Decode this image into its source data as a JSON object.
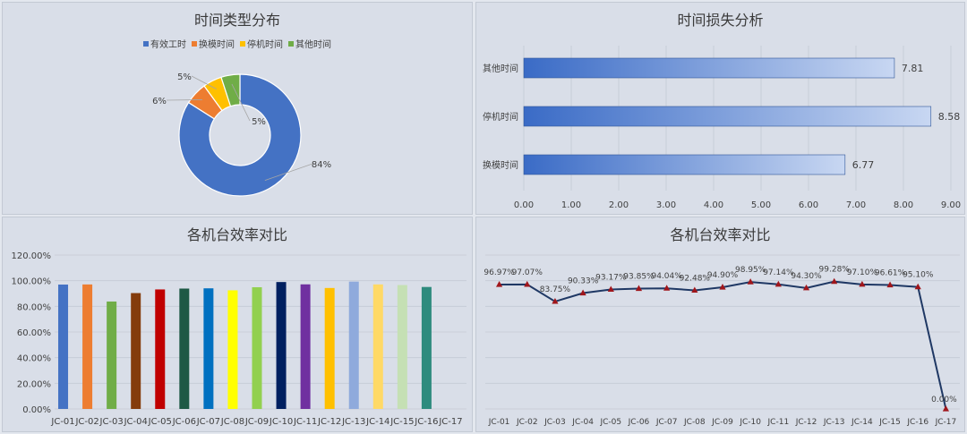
{
  "colors": {
    "panel_bg": "#d9dee8",
    "text": "#404040",
    "grid": "#c4cad5",
    "line": "#1f3864",
    "marker": "#a0161b"
  },
  "chart_data": [
    {
      "type": "pie",
      "subtype": "donut",
      "title": "时间类型分布",
      "legend_position": "top",
      "categories": [
        "有效工时",
        "换模时间",
        "停机时间",
        "其他时间"
      ],
      "values": [
        84,
        6,
        5,
        5
      ],
      "labels": [
        "84%",
        "6%",
        "5%",
        "5%"
      ],
      "colors": [
        "#4472c4",
        "#ed7d31",
        "#ffc000",
        "#70ad47"
      ]
    },
    {
      "type": "bar",
      "orientation": "horizontal",
      "title": "时间损失分析",
      "categories": [
        "其他时间",
        "停机时间",
        "换模时间"
      ],
      "values": [
        7.81,
        8.58,
        6.77
      ],
      "value_labels": [
        "7.81",
        "8.58",
        "6.77"
      ],
      "xlim": [
        0,
        9
      ],
      "xticks": [
        "0.00",
        "1.00",
        "2.00",
        "3.00",
        "4.00",
        "5.00",
        "6.00",
        "7.00",
        "8.00",
        "9.00"
      ],
      "grid": true,
      "bar_color": "#4472c4"
    },
    {
      "type": "bar",
      "title": "各机台效率对比",
      "categories": [
        "JC-01",
        "JC-02",
        "JC-03",
        "JC-04",
        "JC-05",
        "JC-06",
        "JC-07",
        "JC-08",
        "JC-09",
        "JC-10",
        "JC-11",
        "JC-12",
        "JC-13",
        "JC-14",
        "JC-15",
        "JC-16",
        "JC-17"
      ],
      "values": [
        96.97,
        97.07,
        83.75,
        90.33,
        93.17,
        93.85,
        94.04,
        92.48,
        94.9,
        98.95,
        97.14,
        94.3,
        99.28,
        97.1,
        96.61,
        95.1,
        0
      ],
      "ylim": [
        0,
        120
      ],
      "yticks": [
        "0.00%",
        "20.00%",
        "40.00%",
        "60.00%",
        "80.00%",
        "100.00%",
        "120.00%"
      ],
      "grid": true,
      "colors": [
        "#4472c4",
        "#ed7d31",
        "#70ad47",
        "#843c0c",
        "#c00000",
        "#1e5945",
        "#0070c0",
        "#ffff00",
        "#92d050",
        "#002060",
        "#7030a0",
        "#ffc000",
        "#8faadc",
        "#ffd966",
        "#c5e0b4",
        "#2e8b7e",
        "#bfbfbf"
      ]
    },
    {
      "type": "line",
      "title": "各机台效率对比",
      "categories": [
        "JC-01",
        "JC-02",
        "JC-03",
        "JC-04",
        "JC-05",
        "JC-06",
        "JC-07",
        "JC-08",
        "JC-09",
        "JC-10",
        "JC-11",
        "JC-12",
        "JC-13",
        "JC-14",
        "JC-15",
        "JC-16",
        "JC-17"
      ],
      "values": [
        96.97,
        97.07,
        83.75,
        90.33,
        93.17,
        93.85,
        94.04,
        92.48,
        94.9,
        98.95,
        97.14,
        94.3,
        99.28,
        97.1,
        96.61,
        95.1,
        0
      ],
      "value_labels": [
        "96.97%",
        "97.07%",
        "83.75%",
        "90.33%",
        "93.17%",
        "93.85%",
        "94.04%",
        "92.48%",
        "94.90%",
        "98.95%",
        "97.14%",
        "94.30%",
        "99.28%",
        "97.10%",
        "96.61%",
        "95.10%",
        "0.00%"
      ],
      "ylim": [
        0,
        120
      ],
      "grid": true,
      "line_color": "#1f3864",
      "marker_color": "#a0161b"
    }
  ]
}
